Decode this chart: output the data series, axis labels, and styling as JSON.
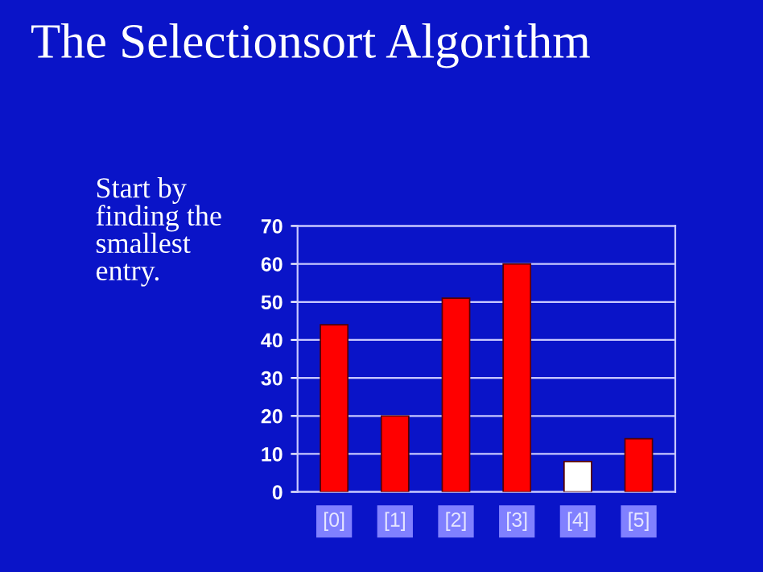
{
  "chart_data": {
    "type": "bar",
    "title": "The Selectionsort Algorithm",
    "annotations": [
      "Start by\nfinding the\nsmallest\nentry."
    ],
    "categories": [
      "[0]",
      "[1]",
      "[2]",
      "[3]",
      "[4]",
      "[5]"
    ],
    "values": [
      44,
      20,
      51,
      60,
      8,
      14
    ],
    "colors": [
      "#ff0000",
      "#ff0000",
      "#ff0000",
      "#ff0000",
      "#ffffff",
      "#ff0000"
    ],
    "ylim": [
      0,
      70
    ],
    "yticks": [
      0,
      10,
      20,
      30,
      40,
      50,
      60,
      70
    ],
    "grid": "y"
  }
}
